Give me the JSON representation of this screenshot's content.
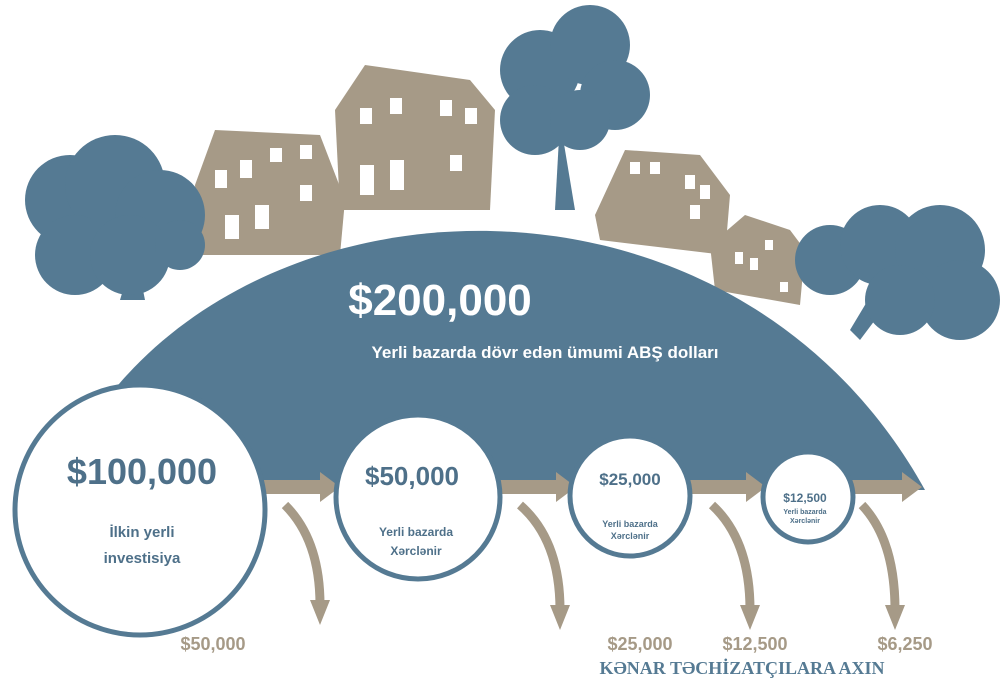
{
  "header": {
    "amount": "$200,000",
    "subtitle": "Yerli bazarda dövr edən ümumi ABŞ dolları"
  },
  "circles": [
    {
      "amount": "$100,000",
      "lines": [
        "İlkin yerli",
        "investisiya"
      ]
    },
    {
      "amount": "$50,000",
      "lines": [
        "Yerli bazarda",
        "Xərclənir"
      ]
    },
    {
      "amount": "$25,000",
      "lines": [
        "Yerli bazarda",
        "Xərclənir"
      ]
    },
    {
      "amount": "$12,500",
      "lines": [
        "Yerli bazarda",
        "Xərclənir"
      ]
    }
  ],
  "leaks": [
    "$50,000",
    "$25,000",
    "$12,500",
    "$6,250"
  ],
  "footer": "KƏNAR TƏCHİZATÇILARA AXIN"
}
